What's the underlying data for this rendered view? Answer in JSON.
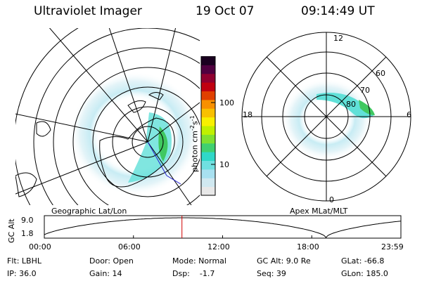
{
  "header": {
    "title": "Ultraviolet Imager",
    "date": "19 Oct 07",
    "time": "09:14:49 UT"
  },
  "colorbar": {
    "unit_label": "photon cm",
    "unit_sup1": "-2",
    "unit_mid": "s",
    "unit_sup2": "-1",
    "ticks": [
      "100",
      "10"
    ],
    "colors": [
      "#e8e8e8",
      "#d0e8f0",
      "#a8e0f0",
      "#70e0e0",
      "#30d8c8",
      "#40d070",
      "#80e030",
      "#c0f000",
      "#f8f000",
      "#f8c000",
      "#f89000",
      "#e04000",
      "#c00010",
      "#900030",
      "#500040",
      "#1a0020"
    ]
  },
  "left_map": {
    "label": "Geographic Lat/Lon"
  },
  "right_map": {
    "label": "Apex MLat/MLT",
    "mlt_labels": {
      "top": "12",
      "left": "18",
      "right": "6",
      "bottom": "0"
    },
    "lat_labels": [
      "60",
      "70",
      "80"
    ]
  },
  "altitude_plot": {
    "ylabel": "GC Alt",
    "yticks": [
      "9.0",
      "1.8"
    ],
    "xticks": [
      "00:00",
      "06:00",
      "12:00",
      "18:00",
      "23:59"
    ],
    "cursor_time_fraction": 0.386,
    "cursor_color": "#d00000"
  },
  "info": {
    "flt": "Flt: LBHL",
    "ip": "IP: 36.0",
    "door": "Door: Open",
    "gain": "Gain: 14",
    "mode": "Mode: Normal",
    "dsp": "Dsp:    -1.7",
    "gcalt": "GC Alt: 9.0 Re",
    "seq": "Seq: 39",
    "glat": "GLat: -66.8",
    "glon": "GLon: 185.0"
  }
}
